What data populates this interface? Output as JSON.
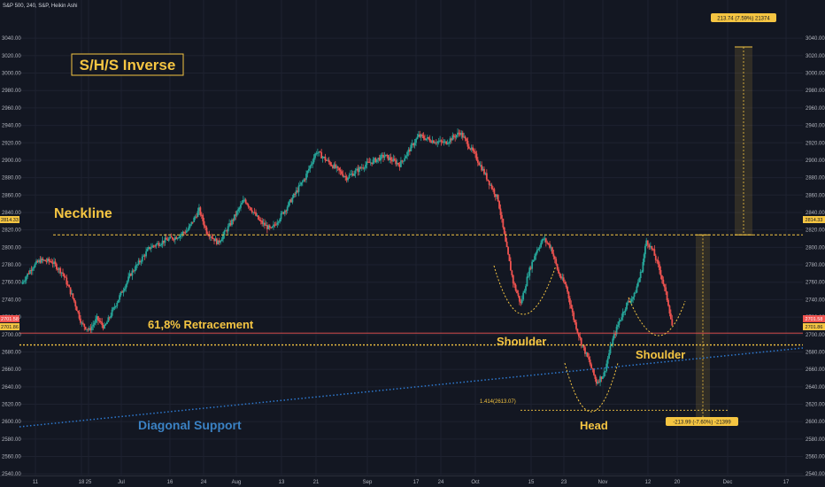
{
  "header": {
    "symbol_info": "S&P 500, 240, S&P, Heikin Ashi"
  },
  "colors": {
    "background": "#131722",
    "grid": "#1e2230",
    "up": "#26a69a",
    "down": "#ef5350",
    "annotation": "#f5c542",
    "support": "#2e7ad1",
    "support_text": "#3b82c4"
  },
  "chart_data": {
    "type": "candlestick",
    "style": "Heikin Ashi",
    "ylim": [
      2530,
      3050
    ],
    "price_ticks": [
      "2540.00",
      "2560.00",
      "2580.00",
      "2600.00",
      "2620.00",
      "2640.00",
      "2660.00",
      "2680.00",
      "2700.00",
      "2720.00",
      "2740.00",
      "2760.00",
      "2780.00",
      "2800.00",
      "2820.00",
      "2840.00",
      "2860.00",
      "2880.00",
      "2900.00",
      "2920.00",
      "2940.00",
      "2960.00",
      "2980.00",
      "3000.00",
      "3020.00",
      "3040.00"
    ],
    "date_ticks": [
      "11",
      "18",
      "25",
      "Jul",
      "16",
      "24",
      "Aug",
      "13",
      "21",
      "Sep",
      "17",
      "24",
      "Oct",
      "15",
      "23",
      "Nov",
      "12",
      "20",
      "Dec",
      "17"
    ],
    "price_path": [
      {
        "d": 0,
        "p": 2758
      },
      {
        "d": 1.5,
        "p": 2778
      },
      {
        "d": 2.5,
        "p": 2785
      },
      {
        "d": 4,
        "p": 2784
      },
      {
        "d": 5.5,
        "p": 2770
      },
      {
        "d": 7,
        "p": 2738
      },
      {
        "d": 8,
        "p": 2712
      },
      {
        "d": 9,
        "p": 2705
      },
      {
        "d": 10,
        "p": 2718
      },
      {
        "d": 11,
        "p": 2708
      },
      {
        "d": 12.5,
        "p": 2735
      },
      {
        "d": 14.5,
        "p": 2770
      },
      {
        "d": 17,
        "p": 2800
      },
      {
        "d": 19,
        "p": 2808
      },
      {
        "d": 20.5,
        "p": 2812
      },
      {
        "d": 22,
        "p": 2820
      },
      {
        "d": 23.5,
        "p": 2843
      },
      {
        "d": 24.5,
        "p": 2818
      },
      {
        "d": 26,
        "p": 2805
      },
      {
        "d": 27.5,
        "p": 2825
      },
      {
        "d": 29.5,
        "p": 2855
      },
      {
        "d": 31.5,
        "p": 2830
      },
      {
        "d": 33,
        "p": 2820
      },
      {
        "d": 35,
        "p": 2845
      },
      {
        "d": 37.5,
        "p": 2880
      },
      {
        "d": 39,
        "p": 2910
      },
      {
        "d": 41,
        "p": 2895
      },
      {
        "d": 43,
        "p": 2880
      },
      {
        "d": 45.5,
        "p": 2895
      },
      {
        "d": 48,
        "p": 2905
      },
      {
        "d": 50,
        "p": 2895
      },
      {
        "d": 52.5,
        "p": 2928
      },
      {
        "d": 54.5,
        "p": 2922
      },
      {
        "d": 56,
        "p": 2920
      },
      {
        "d": 58,
        "p": 2932
      },
      {
        "d": 60,
        "p": 2905
      },
      {
        "d": 61.5,
        "p": 2880
      },
      {
        "d": 63,
        "p": 2855
      },
      {
        "d": 64,
        "p": 2805
      },
      {
        "d": 65,
        "p": 2760
      },
      {
        "d": 66,
        "p": 2735
      },
      {
        "d": 67,
        "p": 2770
      },
      {
        "d": 68,
        "p": 2795
      },
      {
        "d": 69,
        "p": 2810
      },
      {
        "d": 70,
        "p": 2800
      },
      {
        "d": 71,
        "p": 2770
      },
      {
        "d": 72,
        "p": 2755
      },
      {
        "d": 73,
        "p": 2718
      },
      {
        "d": 74,
        "p": 2690
      },
      {
        "d": 75,
        "p": 2670
      },
      {
        "d": 76,
        "p": 2645
      },
      {
        "d": 77,
        "p": 2655
      },
      {
        "d": 78,
        "p": 2690
      },
      {
        "d": 79,
        "p": 2715
      },
      {
        "d": 80,
        "p": 2735
      },
      {
        "d": 81,
        "p": 2745
      },
      {
        "d": 82,
        "p": 2775
      },
      {
        "d": 82.6,
        "p": 2808
      },
      {
        "d": 83.5,
        "p": 2795
      },
      {
        "d": 84.5,
        "p": 2770
      },
      {
        "d": 85.5,
        "p": 2735
      },
      {
        "d": 86,
        "p": 2710
      }
    ],
    "last_price_label": "2701.58",
    "retracement_price_label": "2701.86",
    "neckline_price_label": "2814.33",
    "annotations": {
      "title": "S/H/S Inverse",
      "neckline": "Neckline",
      "retracement": "61,8%  Retracement",
      "shoulder_left": "Shoulder",
      "shoulder_right": "Shoulder",
      "head": "Head",
      "diagonal_support": "Diagonal Support",
      "fib_label": "1.414(2613.07)",
      "target_up": "213.74 (7.59%) 21374",
      "target_down": "-213.99 (-7.60%) -21399"
    },
    "grid": true
  }
}
